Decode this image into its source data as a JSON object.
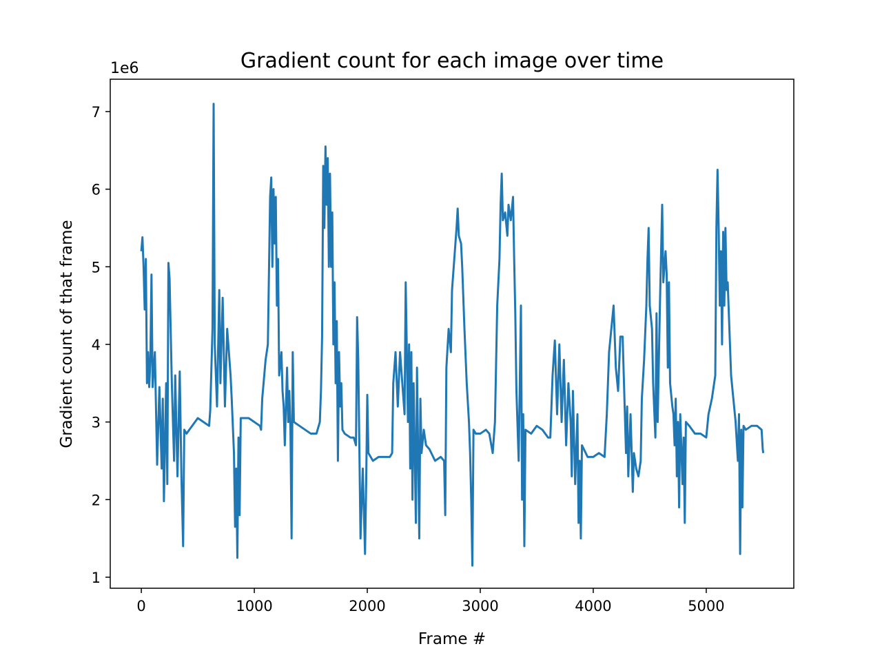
{
  "chart_data": {
    "type": "line",
    "title": "Gradient count for each image over time",
    "xlabel": "Frame #",
    "ylabel": "Gradient count of that frame",
    "y_offset_label": "1e6",
    "xlim": [
      -275,
      5775
    ],
    "xticks": [
      0,
      1000,
      2000,
      3000,
      4000,
      5000
    ],
    "ylim": [
      858000,
      7417000
    ],
    "yticks": [
      {
        "value": 1000000,
        "label": "1"
      },
      {
        "value": 2000000,
        "label": "2"
      },
      {
        "value": 3000000,
        "label": "3"
      },
      {
        "value": 4000000,
        "label": "4"
      },
      {
        "value": 5000000,
        "label": "5"
      },
      {
        "value": 6000000,
        "label": "6"
      },
      {
        "value": 7000000,
        "label": "7"
      }
    ],
    "grid": false,
    "series": [
      {
        "color": "#1f77b4",
        "x": [
          0,
          10,
          20,
          30,
          40,
          50,
          60,
          70,
          80,
          90,
          100,
          120,
          140,
          160,
          180,
          190,
          200,
          220,
          230,
          240,
          250,
          270,
          290,
          300,
          320,
          340,
          355,
          370,
          380,
          400,
          450,
          500,
          550,
          600,
          610,
          630,
          640,
          650,
          670,
          690,
          700,
          720,
          740,
          760,
          790,
          800,
          820,
          830,
          840,
          850,
          860,
          870,
          880,
          900,
          950,
          1000,
          1050,
          1060,
          1070,
          1100,
          1120,
          1140,
          1150,
          1160,
          1170,
          1180,
          1190,
          1200,
          1210,
          1220,
          1240,
          1250,
          1260,
          1270,
          1290,
          1300,
          1310,
          1320,
          1330,
          1340,
          1350,
          1400,
          1450,
          1500,
          1550,
          1580,
          1590,
          1600,
          1610,
          1620,
          1630,
          1640,
          1650,
          1660,
          1670,
          1680,
          1690,
          1700,
          1710,
          1720,
          1730,
          1740,
          1750,
          1760,
          1770,
          1780,
          1800,
          1850,
          1880,
          1900,
          1910,
          1920,
          1940,
          1960,
          1980,
          1990,
          2000,
          2010,
          2050,
          2100,
          2150,
          2200,
          2220,
          2230,
          2250,
          2270,
          2290,
          2310,
          2330,
          2340,
          2360,
          2370,
          2380,
          2390,
          2400,
          2410,
          2430,
          2440,
          2460,
          2470,
          2480,
          2500,
          2520,
          2550,
          2600,
          2650,
          2680,
          2690,
          2700,
          2720,
          2740,
          2750,
          2770,
          2790,
          2800,
          2810,
          2830,
          2840,
          2860,
          2880,
          2900,
          2910,
          2920,
          2930,
          2940,
          2960,
          3000,
          3050,
          3080,
          3110,
          3130,
          3150,
          3170,
          3180,
          3190,
          3200,
          3220,
          3240,
          3250,
          3270,
          3290,
          3300,
          3310,
          3320,
          3340,
          3360,
          3370,
          3380,
          3390,
          3400,
          3450,
          3500,
          3550,
          3600,
          3620,
          3640,
          3660,
          3680,
          3700,
          3720,
          3740,
          3760,
          3780,
          3800,
          3810,
          3820,
          3840,
          3860,
          3870,
          3880,
          3890,
          3900,
          3950,
          4000,
          4050,
          4100,
          4120,
          4140,
          4160,
          4180,
          4200,
          4220,
          4240,
          4260,
          4270,
          4290,
          4300,
          4310,
          4330,
          4350,
          4360,
          4380,
          4400,
          4420,
          4430,
          4450,
          4470,
          4480,
          4490,
          4500,
          4520,
          4530,
          4550,
          4560,
          4570,
          4590,
          4610,
          4620,
          4640,
          4650,
          4660,
          4670,
          4680,
          4700,
          4710,
          4720,
          4730,
          4740,
          4750,
          4760,
          4770,
          4790,
          4800,
          4810,
          4820,
          4850,
          4900,
          4950,
          5000,
          5020,
          5050,
          5080,
          5090,
          5100,
          5110,
          5120,
          5130,
          5140,
          5150,
          5160,
          5170,
          5180,
          5190,
          5200,
          5210,
          5220,
          5240,
          5260,
          5280,
          5290,
          5300,
          5310,
          5320,
          5330,
          5350,
          5400,
          5450,
          5490,
          5500,
          5505
        ],
        "values": [
          5200000,
          5380000,
          5000000,
          4450000,
          5100000,
          3500000,
          3900000,
          3450000,
          3800000,
          4900000,
          3450000,
          3900000,
          2450000,
          3450000,
          2400000,
          3300000,
          1980000,
          3500000,
          2200000,
          5050000,
          4850000,
          3500000,
          2500000,
          3600000,
          2300000,
          3650000,
          2300000,
          1400000,
          2900000,
          2850000,
          2950000,
          3050000,
          3000000,
          2950000,
          3150000,
          4200000,
          7100000,
          4000000,
          3200000,
          4700000,
          3500000,
          4600000,
          3200000,
          4200000,
          3600000,
          3300000,
          2600000,
          1650000,
          2400000,
          1250000,
          2800000,
          1800000,
          3050000,
          3050000,
          3050000,
          3000000,
          2950000,
          2900000,
          3300000,
          3800000,
          4000000,
          5900000,
          6150000,
          5000000,
          6000000,
          5300000,
          5900000,
          4500000,
          5100000,
          3600000,
          3900000,
          3400000,
          3200000,
          2700000,
          3700000,
          3000000,
          3400000,
          2900000,
          1500000,
          3900000,
          3000000,
          2950000,
          2900000,
          2850000,
          2850000,
          3000000,
          3400000,
          4100000,
          6300000,
          5500000,
          6550000,
          5800000,
          6400000,
          5000000,
          6200000,
          5000000,
          5700000,
          4000000,
          4800000,
          3500000,
          4300000,
          2500000,
          3900000,
          3200000,
          3500000,
          2900000,
          2850000,
          2800000,
          2800000,
          2700000,
          4350000,
          3800000,
          1500000,
          2400000,
          1300000,
          2200000,
          3350000,
          2600000,
          2500000,
          2550000,
          2550000,
          2550000,
          2600000,
          3500000,
          3900000,
          3200000,
          3900000,
          3500000,
          3100000,
          4800000,
          3000000,
          4000000,
          2400000,
          3900000,
          2000000,
          3500000,
          1700000,
          3700000,
          1500000,
          3300000,
          2600000,
          2900000,
          2700000,
          2650000,
          2500000,
          2550000,
          2500000,
          1800000,
          3700000,
          4200000,
          3900000,
          4700000,
          5100000,
          5500000,
          5750000,
          5400000,
          5300000,
          5000000,
          4200000,
          3500000,
          3000000,
          2600000,
          2000000,
          1150000,
          2900000,
          2850000,
          2850000,
          2900000,
          2850000,
          2600000,
          3000000,
          4500000,
          5100000,
          5800000,
          6200000,
          5600000,
          5700000,
          5400000,
          5800000,
          5600000,
          5900000,
          5100000,
          4400000,
          3400000,
          2500000,
          4500000,
          2000000,
          3100000,
          1400000,
          2900000,
          2850000,
          2950000,
          2900000,
          2800000,
          2800000,
          3600000,
          4050000,
          3100000,
          4000000,
          3000000,
          3800000,
          2700000,
          3500000,
          3000000,
          2300000,
          3400000,
          2200000,
          3100000,
          1700000,
          2500000,
          1500000,
          2700000,
          2550000,
          2550000,
          2600000,
          2550000,
          3100000,
          3900000,
          4200000,
          4500000,
          3700000,
          3400000,
          4100000,
          4100000,
          3600000,
          2600000,
          3200000,
          2300000,
          3100000,
          2100000,
          2600000,
          2400000,
          2300000,
          2500000,
          3300000,
          3800000,
          4500000,
          5100000,
          5500000,
          4500000,
          4200000,
          3500000,
          2800000,
          4400000,
          3000000,
          4500000,
          5800000,
          4800000,
          5200000,
          4900000,
          3700000,
          4800000,
          3500000,
          3200000,
          3100000,
          2700000,
          3300000,
          2300000,
          3000000,
          1900000,
          3100000,
          2200000,
          2800000,
          1700000,
          3000000,
          2950000,
          2850000,
          2850000,
          2800000,
          3100000,
          3300000,
          3600000,
          5500000,
          6250000,
          5500000,
          4500000,
          5200000,
          4000000,
          5450000,
          4500000,
          5500000,
          4700000,
          4800000,
          4400000,
          4000000,
          3600000,
          3300000,
          3000000,
          2500000,
          3100000,
          1300000,
          2900000,
          1900000,
          2950000,
          2900000,
          2950000,
          2950000,
          2900000,
          2650000,
          2600000
        ]
      }
    ]
  }
}
